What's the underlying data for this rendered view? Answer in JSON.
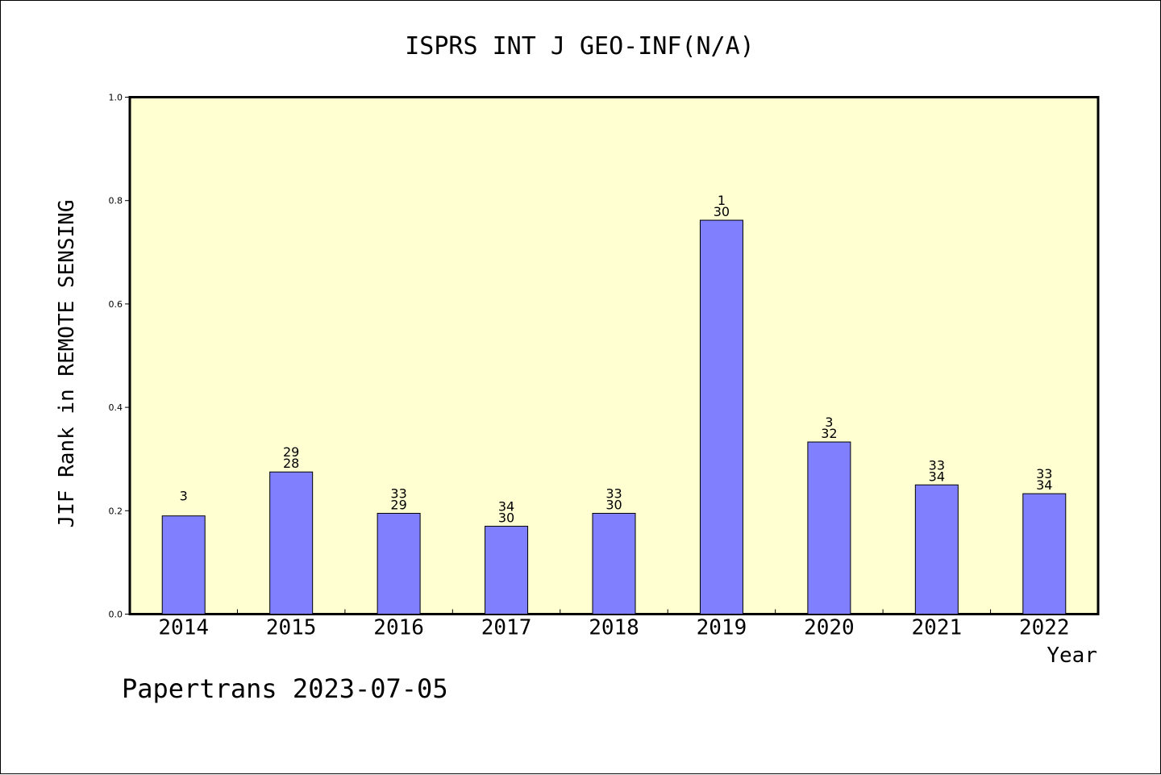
{
  "chart_data": {
    "type": "bar",
    "title": "ISPRS INT J GEO-INF(N/A)",
    "xlabel": "Year",
    "ylabel": "JIF Rank in REMOTE SENSING",
    "ylim": [
      0,
      1.0
    ],
    "yticks": [
      "0.0",
      "0.2",
      "0.4",
      "0.6",
      "0.8",
      "1.0"
    ],
    "grid": false,
    "legend": "none",
    "categories": [
      "2014",
      "2015",
      "2016",
      "2017",
      "2018",
      "2019",
      "2020",
      "2021",
      "2022"
    ],
    "values": [
      0.19,
      0.275,
      0.195,
      0.17,
      0.195,
      0.762,
      0.333,
      0.25,
      0.233
    ],
    "labels_top": [
      "",
      "29",
      "33",
      "34",
      "33",
      "1",
      "3",
      "33",
      "33"
    ],
    "labels_bottom": [
      "3",
      "28",
      "29",
      "30",
      "30",
      "30",
      "32",
      "34",
      "34"
    ],
    "footer": "Papertrans 2023-07-05",
    "colors": {
      "plot_background": "#ffffd2",
      "bar_fill": "#8080ff",
      "bar_stroke": "#000000",
      "axis": "#000000"
    }
  }
}
